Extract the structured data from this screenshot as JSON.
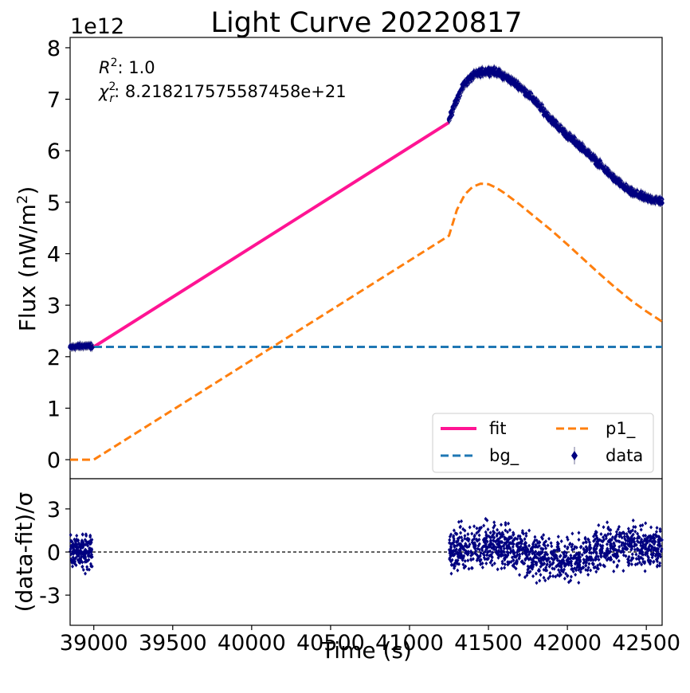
{
  "chart_data": [
    {
      "panel": "main",
      "type": "line",
      "title": "Light Curve 20220817",
      "ylabel": "Flux (nW/m²)",
      "offset_text": "1e12",
      "ylim": [
        -0.37,
        8.2
      ],
      "xlim": [
        38850,
        42600
      ],
      "yticks": [
        0,
        1,
        2,
        3,
        4,
        5,
        6,
        7,
        8
      ],
      "ytick_labels": [
        "0",
        "1",
        "2",
        "3",
        "4",
        "5",
        "6",
        "7",
        "8"
      ],
      "annotations": [
        "R²: 1.0",
        "χᵣ²: 8.218217575587458e+21"
      ],
      "annotation_parts": {
        "r2_symbol": "R",
        "r2_sup": "2",
        "r2_value": ": 1.0",
        "chi_symbol": "χ",
        "chi_sub": "r",
        "chi_sup": "2",
        "chi_value": ": 8.218217575587458e+21"
      },
      "legend": {
        "placement": "lower-right",
        "ncol": 2,
        "entries": [
          "fit",
          "p1_",
          "bg_",
          "data"
        ]
      },
      "series": [
        {
          "name": "fit",
          "style": "solid",
          "color": "#ff1493",
          "x": [
            39000,
            41250
          ],
          "y": [
            2.19,
            6.55
          ]
        },
        {
          "name": "bg_",
          "style": "dashed",
          "color": "#1f77b4",
          "x": [
            38850,
            42600
          ],
          "y": [
            2.19,
            2.19
          ]
        },
        {
          "name": "p1_",
          "style": "dashed",
          "color": "#ff7f0e",
          "x": [
            38850,
            39000,
            41250,
            41300,
            41350,
            41400,
            41450,
            41500,
            41550,
            41600,
            41700,
            41800,
            41900,
            42000,
            42100,
            42200,
            42300,
            42400,
            42500,
            42600
          ],
          "y": [
            0,
            0,
            4.35,
            4.85,
            5.15,
            5.3,
            5.36,
            5.35,
            5.28,
            5.18,
            4.95,
            4.7,
            4.45,
            4.18,
            3.9,
            3.62,
            3.35,
            3.1,
            2.88,
            2.68
          ]
        },
        {
          "name": "data",
          "style": "markers",
          "color": "#000080",
          "segments": [
            {
              "x": [
                38850,
                38900,
                38950,
                38990
              ],
              "y": [
                2.18,
                2.2,
                2.21,
                2.2
              ]
            },
            {
              "x": [
                41250,
                41300,
                41350,
                41400,
                41450,
                41500,
                41550,
                41600,
                41700,
                41800,
                41900,
                42000,
                42100,
                42200,
                42300,
                42400,
                42500,
                42600
              ],
              "y": [
                6.6,
                7.0,
                7.3,
                7.45,
                7.52,
                7.55,
                7.53,
                7.45,
                7.25,
                6.95,
                6.6,
                6.3,
                6.05,
                5.75,
                5.45,
                5.2,
                5.08,
                5.02
              ]
            }
          ]
        }
      ]
    },
    {
      "panel": "residuals",
      "type": "scatter",
      "xlabel": "Time (s)",
      "ylabel": "(data-fit)/σ",
      "ylim": [
        -5.1,
        5.1
      ],
      "xlim": [
        38850,
        42600
      ],
      "yticks": [
        -3,
        0,
        3
      ],
      "ytick_labels": [
        "-3",
        "0",
        "3"
      ],
      "xticks": [
        39000,
        39500,
        40000,
        40500,
        41000,
        41500,
        42000,
        42500
      ],
      "xtick_labels": [
        "39000",
        "39500",
        "40000",
        "40500",
        "41000",
        "41500",
        "42000",
        "42500"
      ],
      "zero_line": 0,
      "series": [
        {
          "name": "data",
          "color": "#000080",
          "segments": [
            {
              "x_range": [
                38850,
                38990
              ],
              "spread": 0.8
            },
            {
              "x_range": [
                41250,
                42600
              ],
              "spread": 1.0
            }
          ]
        }
      ]
    }
  ]
}
